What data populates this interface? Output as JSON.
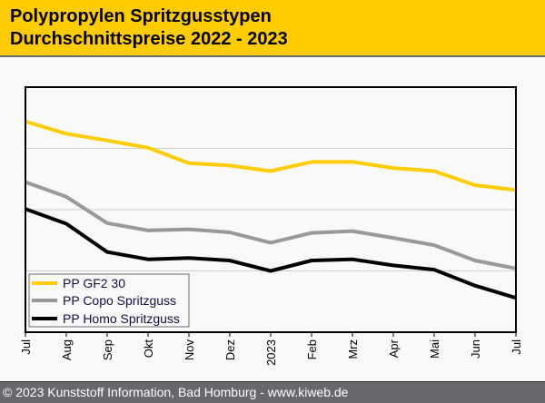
{
  "header": {
    "title_line1": "Polypropylen Spritzgusstypen",
    "title_line2": "Durchschnittspreise 2022 - 2023"
  },
  "footer": {
    "text": "© 2023 Kunststoff Information, Bad Homburg - www.kiweb.de"
  },
  "colors": {
    "header_bg": "#ffcc00",
    "footer_bg": "#67686b",
    "series_gf": "#ffcc00",
    "series_copo": "#999999",
    "series_homo": "#000000"
  },
  "chart_data": {
    "type": "line",
    "title": "Polypropylen Spritzgusstypen Durchschnittspreise 2022 - 2023",
    "xlabel": "",
    "ylabel": "",
    "y_tick_labels_shown": false,
    "ylim": [
      0,
      4
    ],
    "y_gridlines": [
      1,
      2,
      3
    ],
    "grid": true,
    "legend_position": "bottom-left",
    "categories": [
      "Jul",
      "Aug",
      "Sep",
      "Okt",
      "Nov",
      "Dez",
      "2023",
      "Feb",
      "Mrz",
      "Apr",
      "Mai",
      "Jun",
      "Jul"
    ],
    "series": [
      {
        "name": "PP GF2 30",
        "color": "#ffcc00",
        "values": [
          3.44,
          3.24,
          3.13,
          3.01,
          2.76,
          2.72,
          2.63,
          2.78,
          2.78,
          2.68,
          2.63,
          2.4,
          2.32
        ]
      },
      {
        "name": "PP Copo Spritzguss",
        "color": "#999999",
        "values": [
          2.45,
          2.21,
          1.78,
          1.66,
          1.68,
          1.63,
          1.46,
          1.62,
          1.65,
          1.54,
          1.42,
          1.17,
          1.04
        ]
      },
      {
        "name": "PP Homo Spritzguss",
        "color": "#000000",
        "values": [
          2.01,
          1.77,
          1.31,
          1.19,
          1.21,
          1.17,
          1.0,
          1.17,
          1.19,
          1.09,
          1.02,
          0.76,
          0.56
        ]
      }
    ]
  }
}
